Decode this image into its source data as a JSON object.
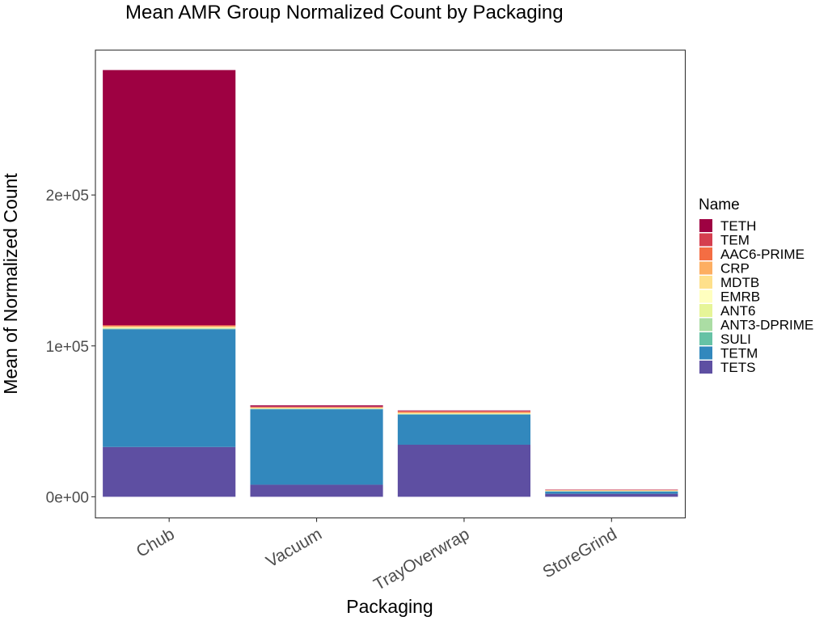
{
  "chart_data": {
    "type": "bar",
    "stacked": true,
    "title": "Mean AMR Group Normalized Count by Packaging",
    "xlabel": "Packaging",
    "ylabel": "Mean of Normalized Count",
    "categories": [
      "Chub",
      "Vacuum",
      "TrayOverwrap",
      "StoreGrind"
    ],
    "yticks": [
      0,
      100000,
      200000
    ],
    "ytick_labels": [
      "0e+00",
      "1e+05",
      "2e+05"
    ],
    "ylim": [
      -14000,
      296000
    ],
    "legend_title": "Name",
    "legend_position": "right",
    "grid": false,
    "series": [
      {
        "name": "TETS",
        "color": "#5E4FA2",
        "values": [
          33000,
          8000,
          34500,
          2000
        ]
      },
      {
        "name": "TETM",
        "color": "#3288BD",
        "values": [
          78000,
          50000,
          20000,
          1500
        ]
      },
      {
        "name": "SULI",
        "color": "#66C2A5",
        "values": [
          300,
          200,
          200,
          100
        ]
      },
      {
        "name": "ANT3-DPRIME",
        "color": "#ABDDA4",
        "values": [
          300,
          200,
          200,
          100
        ]
      },
      {
        "name": "ANT6",
        "color": "#E6F598",
        "values": [
          200,
          100,
          100,
          100
        ]
      },
      {
        "name": "EMRB",
        "color": "#FFFFBF",
        "values": [
          200,
          100,
          100,
          100
        ]
      },
      {
        "name": "MDTB",
        "color": "#FEE08B",
        "values": [
          600,
          300,
          400,
          200
        ]
      },
      {
        "name": "CRP",
        "color": "#FDAE61",
        "values": [
          500,
          300,
          500,
          200
        ]
      },
      {
        "name": "AAC6-PRIME",
        "color": "#F46D43",
        "values": [
          400,
          300,
          500,
          200
        ]
      },
      {
        "name": "TEM",
        "color": "#D53E4F",
        "values": [
          300,
          300,
          400,
          200
        ]
      },
      {
        "name": "TETH",
        "color": "#9E0142",
        "values": [
          169000,
          800,
          300,
          100
        ]
      }
    ]
  }
}
